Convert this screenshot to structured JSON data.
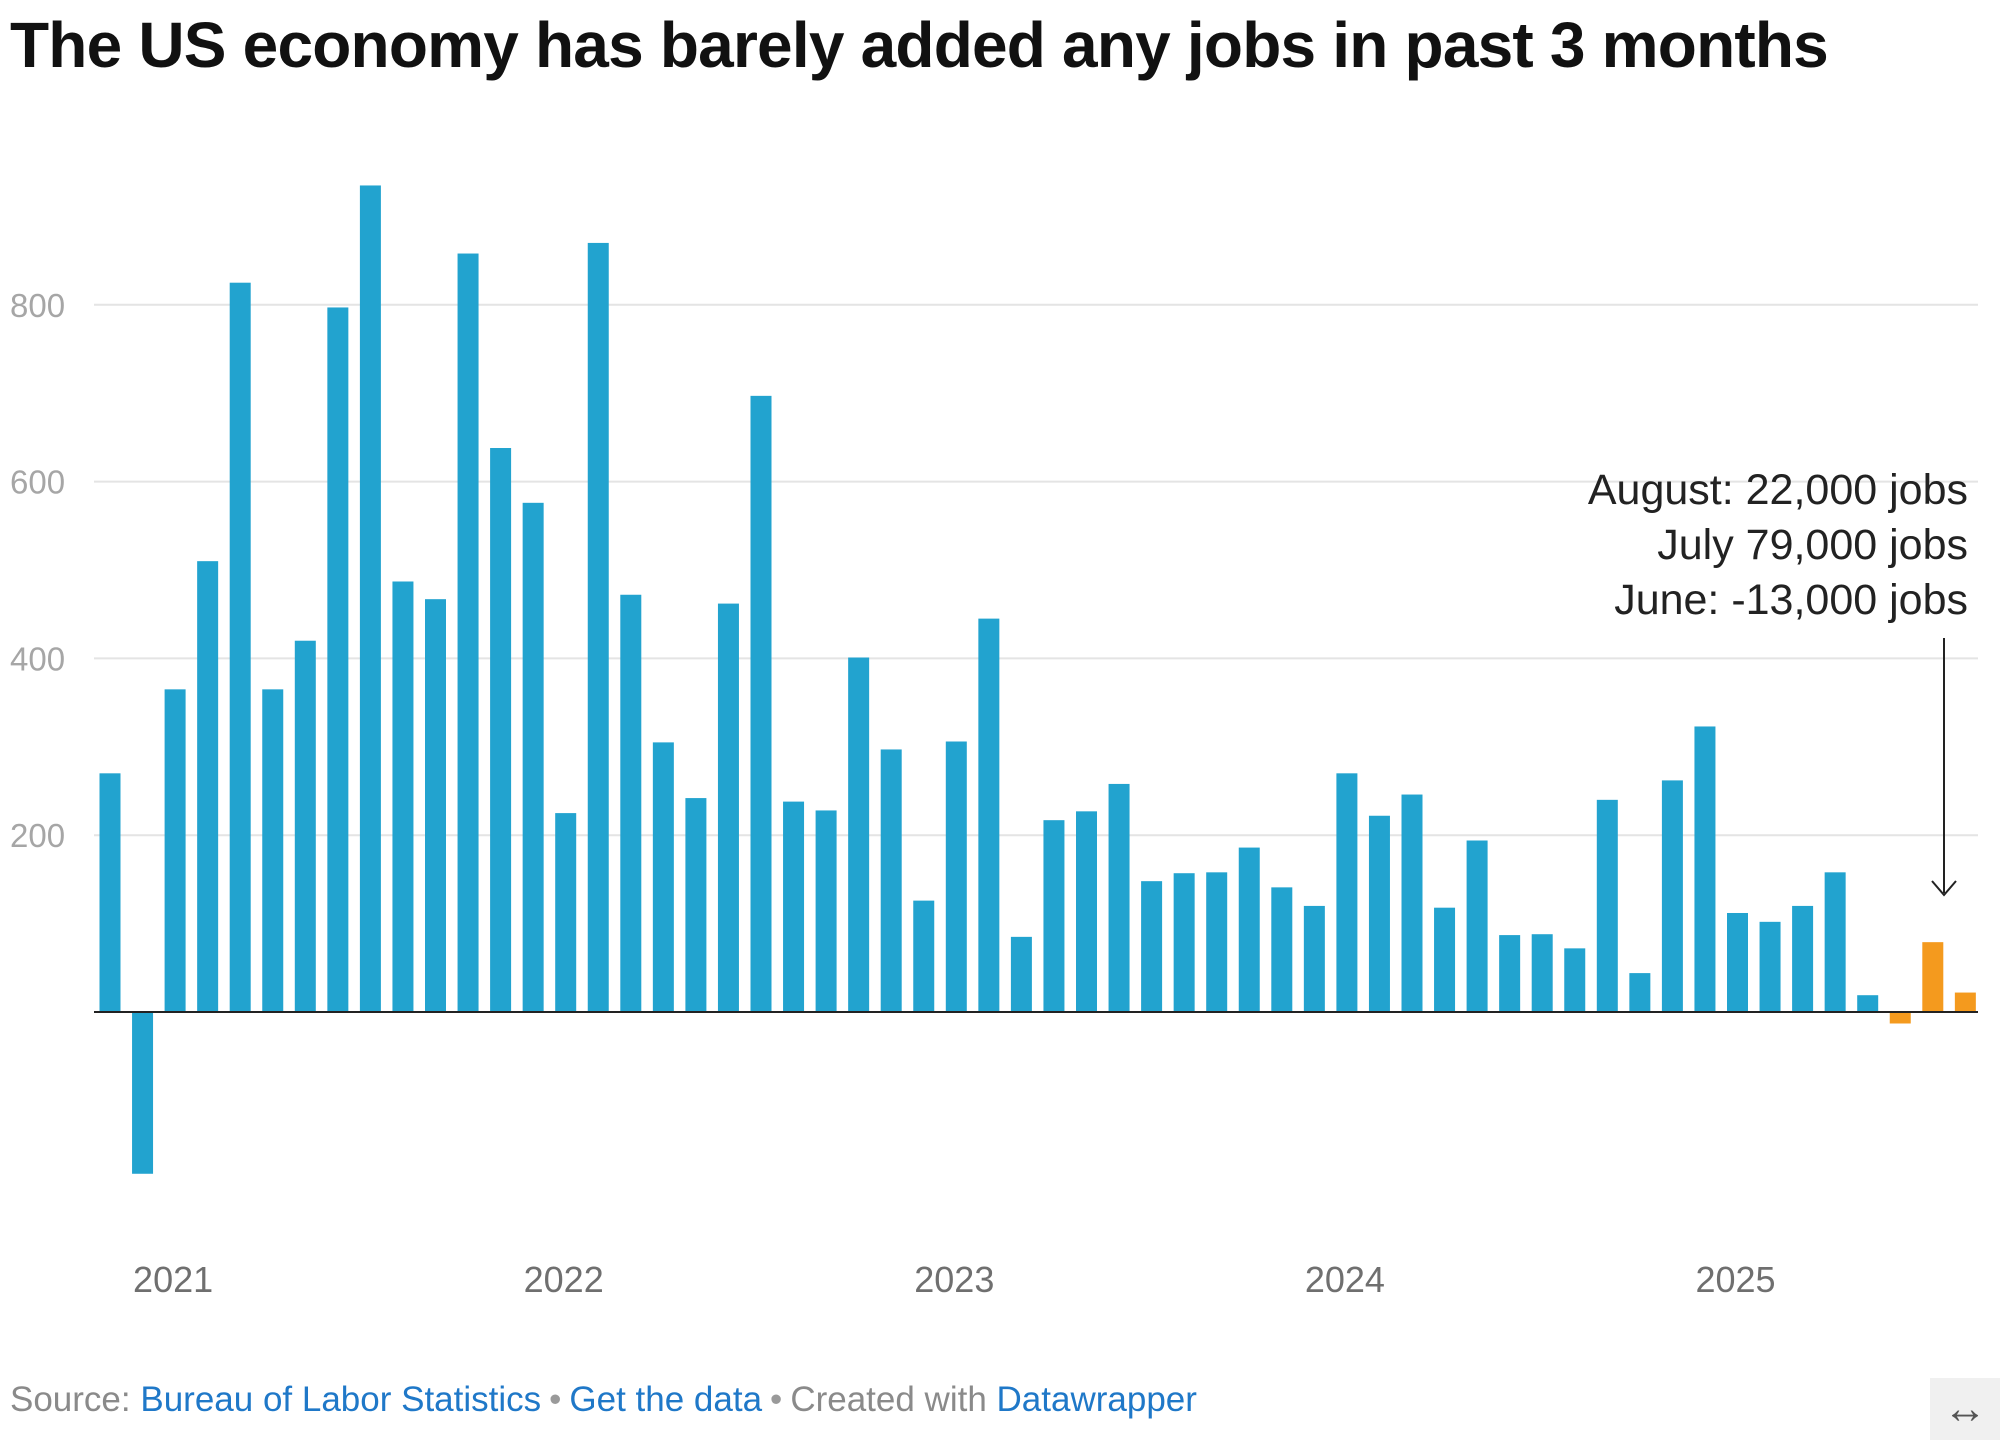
{
  "chart_data": {
    "type": "bar",
    "title": "The US economy has barely added any jobs in past 3 months",
    "unit": "thousands of jobs",
    "ylim": [
      -200,
      950
    ],
    "yticks": [
      200,
      400,
      600,
      800
    ],
    "grid": true,
    "x_tick_labels": [
      "2021",
      "2022",
      "2023",
      "2024",
      "2025"
    ],
    "x_tick_index": [
      2,
      14,
      26,
      38,
      50
    ],
    "colors": {
      "bar": "#22a3cf",
      "highlight": "#f49a1e",
      "baseline": "#222222",
      "grid": "#e4e4e4"
    },
    "highlight_count": 3,
    "values": [
      270,
      -183,
      365,
      510,
      825,
      365,
      420,
      797,
      935,
      487,
      467,
      858,
      638,
      576,
      225,
      870,
      472,
      305,
      242,
      462,
      697,
      238,
      228,
      401,
      297,
      126,
      306,
      445,
      85,
      217,
      227,
      258,
      148,
      157,
      158,
      186,
      141,
      120,
      270,
      222,
      246,
      118,
      194,
      87,
      88,
      72,
      240,
      44,
      262,
      323,
      112,
      102,
      120,
      158,
      19,
      -13,
      79,
      22
    ],
    "annotation": {
      "lines": [
        "August: 22,000 jobs",
        "July 79,000 jobs",
        "June: -13,000 jobs"
      ]
    }
  },
  "footer": {
    "source_prefix": "Source:",
    "source_link": "Bureau of Labor Statistics",
    "sep": "•",
    "data_link": "Get the data",
    "created_prefix": "Created with",
    "created_link": "Datawrapper"
  },
  "expand_icon": {
    "glyph": "↔",
    "name": "expand-arrows-icon"
  }
}
